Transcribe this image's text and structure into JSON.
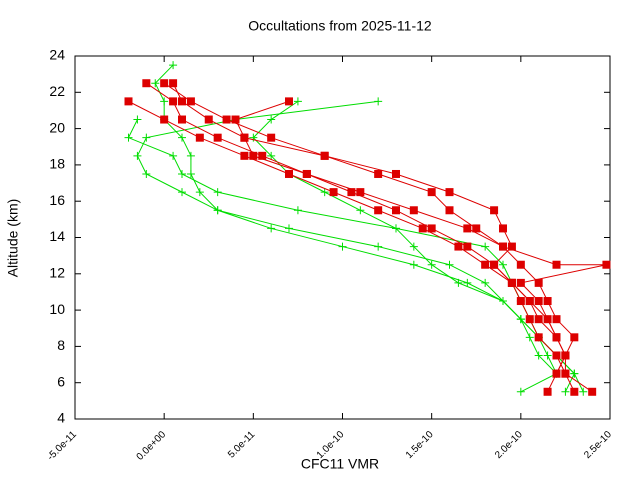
{
  "chart_data": {
    "type": "line",
    "title": "Occultations from 2025-11-12",
    "x_label": "CFC11 VMR",
    "y_label": "Altitude (km)",
    "xlim": [
      -5e-11,
      2.5e-10
    ],
    "xticks": [
      {
        "value": -5e-11,
        "label": "-5.0e-11"
      },
      {
        "value": 0,
        "label": "0.0e+00"
      },
      {
        "value": 5e-11,
        "label": "5.0e-11"
      },
      {
        "value": 1e-10,
        "label": "1.0e-10"
      },
      {
        "value": 1.5e-10,
        "label": "1.5e-10"
      },
      {
        "value": 2e-10,
        "label": "2.0e-10"
      },
      {
        "value": 2.5e-10,
        "label": "2.5e-10"
      }
    ],
    "ylim": [
      4,
      24
    ],
    "yticks": [
      4,
      6,
      8,
      10,
      12,
      14,
      16,
      18,
      20,
      22,
      24
    ],
    "series": [
      {
        "color": "#00dd00",
        "marker": "plus",
        "x": [
          5e-12,
          -5e-12,
          0.0,
          0.0,
          1e-11,
          1.5e-11,
          1.5e-11,
          2e-11,
          3e-11,
          6e-11,
          1e-10,
          1.4e-10,
          1.7e-10,
          1.9e-10,
          2e-10,
          2.1e-10,
          2.2e-10,
          2.3e-10,
          2.35e-10
        ],
        "values": [
          23.5,
          22.5,
          21.5,
          20.5,
          19.5,
          18.5,
          17.5,
          16.5,
          15.5,
          14.5,
          13.5,
          12.5,
          11.5,
          10.5,
          9.5,
          8.5,
          7.5,
          6.5,
          5.5
        ]
      },
      {
        "color": "#00dd00",
        "marker": "plus",
        "x": [
          1.2e-10,
          4e-11,
          -1e-11,
          -1.5e-11,
          -1e-11,
          1e-11,
          3e-11,
          7e-11,
          1.2e-10,
          1.6e-10,
          1.8e-10,
          1.9e-10,
          2e-10,
          2.1e-10,
          2.2e-10,
          2.3e-10,
          2.25e-10
        ],
        "values": [
          21.5,
          20.5,
          19.5,
          18.5,
          17.5,
          16.5,
          15.5,
          14.5,
          13.5,
          12.5,
          11.5,
          10.5,
          9.5,
          8.5,
          7.5,
          6.5,
          5.5
        ]
      },
      {
        "color": "#00dd00",
        "marker": "plus",
        "x": [
          -1.5e-11,
          -2e-11,
          5e-12,
          1e-11,
          3e-11,
          7.5e-11,
          1.3e-10,
          1.8e-10,
          1.9e-10,
          1.95e-10,
          2e-10,
          2.05e-10,
          2.1e-10,
          2.15e-10,
          2.2e-10
        ],
        "values": [
          20.5,
          19.5,
          18.5,
          17.5,
          16.5,
          15.5,
          14.5,
          13.5,
          12.5,
          11.5,
          10.5,
          9.5,
          8.5,
          7.5,
          6.5
        ]
      },
      {
        "color": "#00dd00",
        "marker": "plus",
        "x": [
          7.5e-11,
          6e-11,
          5e-11,
          6e-11,
          7e-11,
          9e-11,
          1.1e-10,
          1.3e-10,
          1.4e-10,
          1.5e-10,
          1.65e-10,
          1.9e-10,
          2e-10,
          2.05e-10,
          2.1e-10,
          2.2e-10,
          2e-10
        ],
        "values": [
          21.5,
          20.5,
          19.5,
          18.5,
          17.5,
          16.5,
          15.5,
          14.5,
          13.5,
          12.5,
          11.5,
          10.5,
          9.5,
          8.5,
          7.5,
          6.5,
          5.5
        ]
      },
      {
        "color": "#dd0000",
        "marker": "square",
        "x": [
          -1e-11,
          5e-12,
          1e-11,
          3e-11,
          5.5e-11,
          8e-11,
          1.05e-10,
          1.3e-10,
          1.5e-10,
          1.7e-10,
          1.85e-10,
          1.95e-10,
          2.05e-10,
          2.15e-10,
          2.2e-10,
          2.25e-10,
          2.2e-10,
          2.15e-10
        ],
        "values": [
          22.5,
          21.5,
          20.5,
          19.5,
          18.5,
          17.5,
          16.5,
          15.5,
          14.5,
          13.5,
          12.5,
          11.5,
          10.5,
          9.5,
          8.5,
          7.5,
          6.5,
          5.5
        ]
      },
      {
        "color": "#dd0000",
        "marker": "square",
        "x": [
          -2e-11,
          0.0,
          2e-11,
          4.5e-11,
          7e-11,
          9.5e-11,
          1.2e-10,
          1.45e-10,
          1.65e-10,
          1.8e-10,
          1.95e-10,
          2.05e-10,
          2.1e-10,
          2.2e-10,
          2.25e-10,
          2.25e-10,
          2.3e-10
        ],
        "values": [
          21.5,
          20.5,
          19.5,
          18.5,
          17.5,
          16.5,
          15.5,
          14.5,
          13.5,
          12.5,
          11.5,
          10.5,
          9.5,
          8.5,
          7.5,
          6.5,
          5.5
        ]
      },
      {
        "color": "#dd0000",
        "marker": "square",
        "x": [
          0.0,
          1.5e-11,
          3.5e-11,
          6e-11,
          9e-11,
          1.2e-10,
          1.5e-10,
          1.6e-10,
          1.75e-10,
          1.9e-10,
          2e-10,
          2.1e-10,
          2.15e-10,
          2.2e-10,
          2.3e-10,
          2.25e-10,
          2.2e-10
        ],
        "values": [
          22.5,
          21.5,
          20.5,
          19.5,
          18.5,
          17.5,
          16.5,
          15.5,
          14.5,
          13.5,
          12.5,
          11.5,
          10.5,
          9.5,
          8.5,
          7.5,
          6.5
        ]
      },
      {
        "color": "#dd0000",
        "marker": "square",
        "x": [
          7e-11,
          4e-11,
          4.5e-11,
          5e-11,
          8e-11,
          1.1e-10,
          1.4e-10,
          1.7e-10,
          1.9e-10,
          2.2e-10,
          2.48e-10,
          2e-10,
          2.1e-10,
          2.2e-10
        ],
        "values": [
          21.5,
          20.5,
          19.5,
          18.5,
          17.5,
          16.5,
          15.5,
          14.5,
          13.5,
          12.5,
          12.5,
          11.5,
          10.5,
          8.5
        ]
      },
      {
        "color": "#dd0000",
        "marker": "square",
        "x": [
          5e-12,
          1e-11,
          2.5e-11,
          4.5e-11,
          9e-11,
          1.3e-10,
          1.6e-10,
          1.85e-10,
          1.9e-10,
          1.95e-10,
          1.85e-10,
          1.95e-10,
          2e-10,
          2.05e-10,
          2.1e-10,
          2.2e-10,
          2.25e-10,
          2.4e-10
        ],
        "values": [
          22.5,
          21.5,
          20.5,
          19.5,
          18.5,
          17.5,
          16.5,
          15.5,
          14.5,
          13.5,
          12.5,
          11.5,
          10.5,
          9.5,
          8.5,
          7.5,
          6.5,
          5.5
        ]
      }
    ]
  }
}
